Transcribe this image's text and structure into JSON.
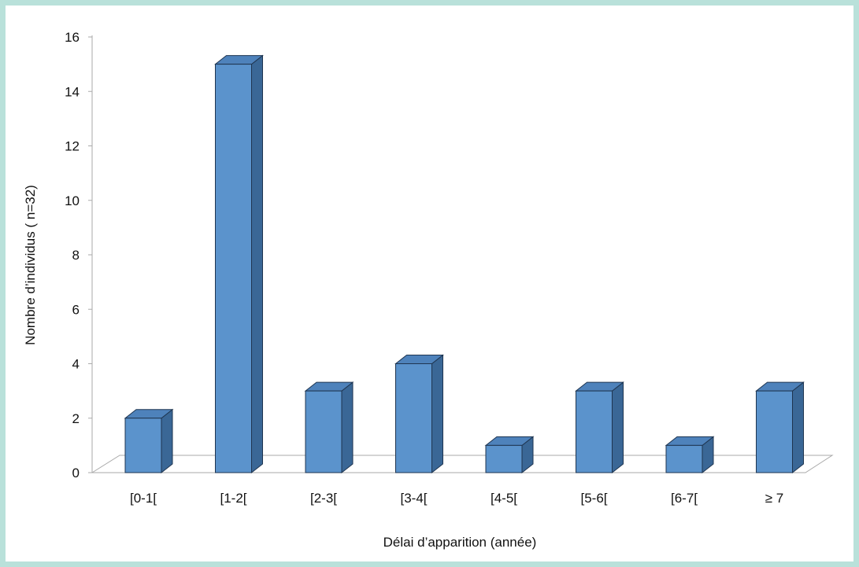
{
  "chart_data": {
    "type": "bar",
    "title": "",
    "xlabel": "Délai d’apparition (année)",
    "ylabel": "Nombre d’individus ( n=32)",
    "categories": [
      "[0-1[",
      "[1-2[",
      "[2-3[",
      "[3-4[",
      "[4-5[",
      "[5-6[",
      "[6-7[",
      "≥ 7"
    ],
    "values": [
      2,
      15,
      3,
      4,
      1,
      3,
      1,
      3
    ],
    "ylim": [
      0,
      16
    ],
    "yticks": [
      "0",
      "2",
      "4",
      "6",
      "8",
      "10",
      "12",
      "14",
      "16"
    ],
    "grid": false,
    "legend": "none",
    "style": "3d-column"
  },
  "colors": {
    "background": "#b9e1da",
    "plot_background": "#ffffff",
    "bar_front": "#5b93cc",
    "bar_side": "#3a6796",
    "bar_top": "#4e82bb",
    "bar_stroke": "#1f3550",
    "axis": "#aaaaaa",
    "floor": "#ffffff"
  }
}
